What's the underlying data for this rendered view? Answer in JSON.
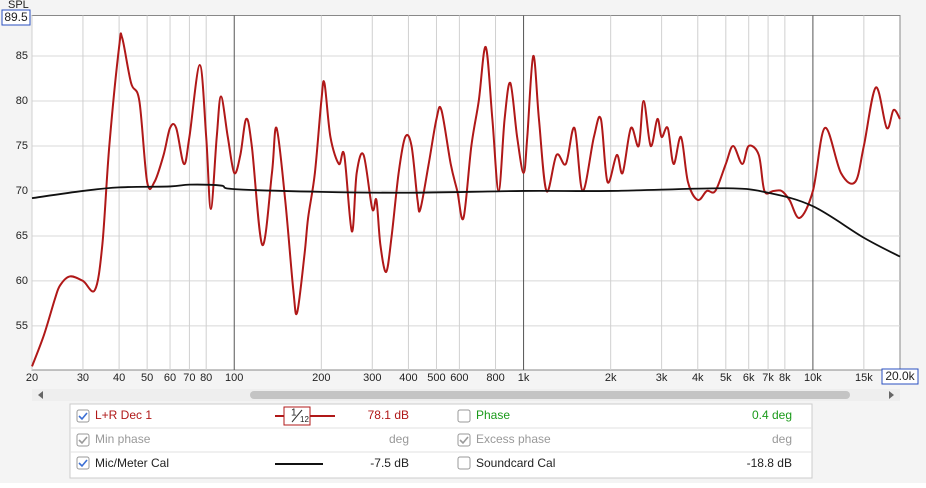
{
  "chart_data": {
    "type": "line",
    "y_label": "SPL",
    "log_x": true,
    "grid": true,
    "xlim": [
      20,
      20000
    ],
    "ylim": [
      50.1,
      89.5
    ],
    "ylim_label": "89.5",
    "xticks": [
      20,
      30,
      40,
      50,
      60,
      70,
      80,
      100,
      200,
      300,
      400,
      500,
      600,
      800,
      {
        "value": 1000,
        "label": "1k"
      },
      {
        "value": 2000,
        "label": "2k"
      },
      {
        "value": 3000,
        "label": "3k"
      },
      {
        "value": 4000,
        "label": "4k"
      },
      {
        "value": 5000,
        "label": "5k"
      },
      {
        "value": 6000,
        "label": "6k"
      },
      {
        "value": 7000,
        "label": "7k"
      },
      {
        "value": 8000,
        "label": "8k"
      },
      {
        "value": 10000,
        "label": "10k"
      },
      {
        "value": 15000,
        "label": "15k"
      }
    ],
    "xlim_label": "20.0k",
    "yticks": [
      55,
      60,
      65,
      70,
      75,
      80,
      85
    ],
    "series": [
      {
        "name": "L+R Dec 1",
        "color": "#b01818",
        "x": [
          20,
          22,
          24,
          25,
          27,
          30,
          33,
          35,
          37,
          40,
          41,
          44,
          47,
          50,
          53,
          57,
          60,
          63,
          67,
          70,
          76,
          80,
          83,
          87,
          90,
          95,
          100,
          105,
          110,
          115,
          125,
          135,
          140,
          150,
          160,
          165,
          175,
          180,
          190,
          200,
          205,
          215,
          230,
          240,
          255,
          265,
          280,
          300,
          310,
          320,
          335,
          350,
          370,
          390,
          410,
          430,
          440,
          470,
          500,
          520,
          560,
          590,
          620,
          660,
          700,
          740,
          780,
          820,
          860,
          900,
          950,
          1000,
          1030,
          1080,
          1130,
          1200,
          1300,
          1400,
          1500,
          1600,
          1750,
          1850,
          1950,
          2100,
          2200,
          2350,
          2500,
          2600,
          2750,
          2900,
          3000,
          3150,
          3300,
          3500,
          3700,
          4000,
          4300,
          4600,
          5000,
          5300,
          5700,
          6000,
          6500,
          6800,
          7300,
          7800,
          8300,
          9000,
          10000,
          11000,
          12500,
          14000,
          15000,
          16500,
          18000,
          19000,
          20000
        ],
        "values": [
          50.5,
          54,
          58,
          59.5,
          60.5,
          60,
          59,
          64,
          75,
          86,
          87,
          82,
          80,
          71,
          71,
          74,
          77,
          77,
          73,
          76,
          84,
          76,
          68,
          76,
          80.5,
          76,
          72,
          74,
          78,
          75,
          64,
          72,
          77,
          69,
          59,
          56.5,
          63,
          67,
          72,
          80,
          82,
          76,
          73,
          74,
          65.5,
          72,
          74,
          68,
          69,
          64,
          61,
          65,
          72,
          76,
          75,
          69,
          68,
          73,
          78,
          79,
          73,
          70,
          67,
          75,
          80,
          86,
          78,
          70,
          78,
          82,
          76,
          72,
          76,
          85,
          78,
          70,
          74,
          73,
          77,
          70,
          76,
          78,
          71,
          74,
          72,
          77,
          75,
          80,
          75,
          78,
          76,
          77,
          73,
          76,
          71,
          69,
          70,
          70,
          73,
          75,
          73,
          75,
          74,
          70,
          70,
          70,
          69,
          67,
          70,
          77,
          72,
          71,
          75,
          81.5,
          77,
          79,
          78
        ]
      },
      {
        "name": "Mic/Meter Cal",
        "color": "#111111",
        "x": [
          20,
          30,
          40,
          60,
          70,
          90,
          100,
          200,
          400,
          1000,
          2000,
          5000,
          7000,
          10000,
          15000,
          20000
        ],
        "values": [
          69.2,
          70,
          70.4,
          70.5,
          70.7,
          70.6,
          70.2,
          69.9,
          69.8,
          70,
          70,
          70.3,
          69.8,
          68.3,
          64.8,
          62.7
        ]
      }
    ]
  },
  "panel": {
    "smoothing_num": "1",
    "smoothing_den": "12",
    "readout_1": "78.1 dB",
    "readout_3": "-7.5 dB",
    "phase": "Phase",
    "phase_readout": "0.4 deg",
    "min_phase": "Min phase",
    "min_phase_unit": "deg",
    "excess_phase": "Excess phase",
    "excess_phase_unit": "deg",
    "soundcard_cal": "Soundcard Cal",
    "soundcard_readout": "-18.8 dB"
  }
}
